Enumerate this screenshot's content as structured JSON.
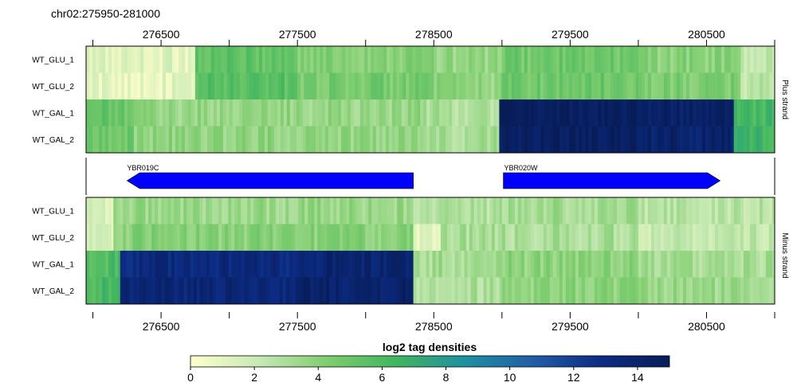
{
  "title": "chr02:275950-281000",
  "x_axis": {
    "range": [
      275950,
      281000
    ],
    "ticks": [
      276000,
      276500,
      277000,
      277500,
      278000,
      278500,
      279000,
      279500,
      280000,
      280500,
      281000
    ],
    "tick_labels": [
      {
        "value": 276500,
        "label": "276500"
      },
      {
        "value": 277500,
        "label": "277500"
      },
      {
        "value": 278500,
        "label": "278500"
      },
      {
        "value": 279500,
        "label": "279500"
      },
      {
        "value": 280500,
        "label": "280500"
      }
    ]
  },
  "panels": {
    "plus": {
      "strip_label": "Plus strand",
      "rows": [
        "WT_GLU_1",
        "WT_GLU_2",
        "WT_GAL_1",
        "WT_GAL_2"
      ]
    },
    "minus": {
      "strip_label": "Minus strand",
      "rows": [
        "WT_GLU_1",
        "WT_GLU_2",
        "WT_GAL_1",
        "WT_GAL_2"
      ]
    }
  },
  "genes": [
    {
      "name": "YBR019C",
      "start": 276250,
      "end": 278350,
      "strand": "-",
      "color": "#0000ff"
    },
    {
      "name": "YBR020W",
      "start": 279010,
      "end": 280600,
      "strand": "+",
      "color": "#0000ff"
    }
  ],
  "colorbar": {
    "title": "log2 tag densities",
    "min": 0,
    "max": 15,
    "ticks": [
      0,
      2,
      4,
      6,
      8,
      10,
      12,
      14
    ],
    "tick_labels": [
      "0",
      "2",
      "4",
      "6",
      "8",
      "10",
      "12",
      "14"
    ],
    "colors": [
      "#ffffcc",
      "#c7e9b4",
      "#7fcd6e",
      "#41b65e",
      "#1d91a0",
      "#225ea8",
      "#0c2c84",
      "#081d58"
    ]
  },
  "chart_data": {
    "type": "heatmap",
    "title": "chr02:275950-281000",
    "xlabel": "",
    "ylabel": "",
    "x_range": [
      275950,
      281000
    ],
    "value_label": "log2 tag densities",
    "value_range": [
      0,
      15
    ],
    "strands": [
      {
        "name": "Plus strand",
        "tracks": [
          {
            "name": "WT_GLU_1",
            "segments": [
              {
                "start": 275950,
                "end": 276750,
                "value": 1.2
              },
              {
                "start": 276750,
                "end": 277500,
                "value": 5.3
              },
              {
                "start": 277500,
                "end": 278500,
                "value": 4.2
              },
              {
                "start": 278500,
                "end": 279000,
                "value": 3.6
              },
              {
                "start": 279000,
                "end": 280000,
                "value": 4.8
              },
              {
                "start": 280000,
                "end": 280750,
                "value": 4.0
              },
              {
                "start": 280750,
                "end": 281000,
                "value": 2.2
              }
            ]
          },
          {
            "name": "WT_GLU_2",
            "segments": [
              {
                "start": 275950,
                "end": 276750,
                "value": 1.0
              },
              {
                "start": 276750,
                "end": 277500,
                "value": 5.6
              },
              {
                "start": 277500,
                "end": 278500,
                "value": 4.6
              },
              {
                "start": 278500,
                "end": 279000,
                "value": 3.7
              },
              {
                "start": 279000,
                "end": 280000,
                "value": 4.9
              },
              {
                "start": 280000,
                "end": 280750,
                "value": 4.3
              },
              {
                "start": 280750,
                "end": 281000,
                "value": 2.5
              }
            ]
          },
          {
            "name": "WT_GAL_1",
            "segments": [
              {
                "start": 275950,
                "end": 276300,
                "value": 5.0
              },
              {
                "start": 276300,
                "end": 278400,
                "value": 3.6
              },
              {
                "start": 278400,
                "end": 278980,
                "value": 3.0
              },
              {
                "start": 278980,
                "end": 280000,
                "value": 14.8
              },
              {
                "start": 280000,
                "end": 280700,
                "value": 14.3
              },
              {
                "start": 280700,
                "end": 281000,
                "value": 6.2
              }
            ]
          },
          {
            "name": "WT_GAL_2",
            "segments": [
              {
                "start": 275950,
                "end": 276300,
                "value": 5.0
              },
              {
                "start": 276300,
                "end": 278400,
                "value": 3.8
              },
              {
                "start": 278400,
                "end": 278980,
                "value": 3.1
              },
              {
                "start": 278980,
                "end": 280000,
                "value": 14.6
              },
              {
                "start": 280000,
                "end": 280700,
                "value": 14.1
              },
              {
                "start": 280700,
                "end": 281000,
                "value": 6.5
              }
            ]
          }
        ]
      },
      {
        "name": "Minus strand",
        "tracks": [
          {
            "name": "WT_GLU_1",
            "segments": [
              {
                "start": 275950,
                "end": 276150,
                "value": 1.6
              },
              {
                "start": 276150,
                "end": 278350,
                "value": 3.5
              },
              {
                "start": 278350,
                "end": 279000,
                "value": 2.8
              },
              {
                "start": 279000,
                "end": 280000,
                "value": 3.2
              },
              {
                "start": 280000,
                "end": 281000,
                "value": 2.6
              }
            ]
          },
          {
            "name": "WT_GLU_2",
            "segments": [
              {
                "start": 275950,
                "end": 276150,
                "value": 1.4
              },
              {
                "start": 276150,
                "end": 278350,
                "value": 4.1
              },
              {
                "start": 278350,
                "end": 278550,
                "value": 1.0
              },
              {
                "start": 278550,
                "end": 279000,
                "value": 3.0
              },
              {
                "start": 279000,
                "end": 280000,
                "value": 3.0
              },
              {
                "start": 280000,
                "end": 281000,
                "value": 2.2
              }
            ]
          },
          {
            "name": "WT_GAL_1",
            "segments": [
              {
                "start": 275950,
                "end": 276200,
                "value": 6.0
              },
              {
                "start": 276200,
                "end": 277500,
                "value": 13.3
              },
              {
                "start": 277500,
                "end": 278350,
                "value": 13.8
              },
              {
                "start": 278350,
                "end": 279000,
                "value": 3.2
              },
              {
                "start": 279000,
                "end": 280000,
                "value": 3.8
              },
              {
                "start": 280000,
                "end": 281000,
                "value": 3.0
              }
            ]
          },
          {
            "name": "WT_GAL_2",
            "segments": [
              {
                "start": 275950,
                "end": 276200,
                "value": 6.2
              },
              {
                "start": 276200,
                "end": 277500,
                "value": 13.5
              },
              {
                "start": 277500,
                "end": 278350,
                "value": 14.2
              },
              {
                "start": 278350,
                "end": 279000,
                "value": 3.0
              },
              {
                "start": 279000,
                "end": 280000,
                "value": 3.9
              },
              {
                "start": 280000,
                "end": 281000,
                "value": 3.4
              }
            ]
          }
        ]
      }
    ],
    "genes": [
      {
        "name": "YBR019C",
        "start": 276250,
        "end": 278350,
        "strand": "-"
      },
      {
        "name": "YBR020W",
        "start": 279010,
        "end": 280600,
        "strand": "+"
      }
    ]
  }
}
